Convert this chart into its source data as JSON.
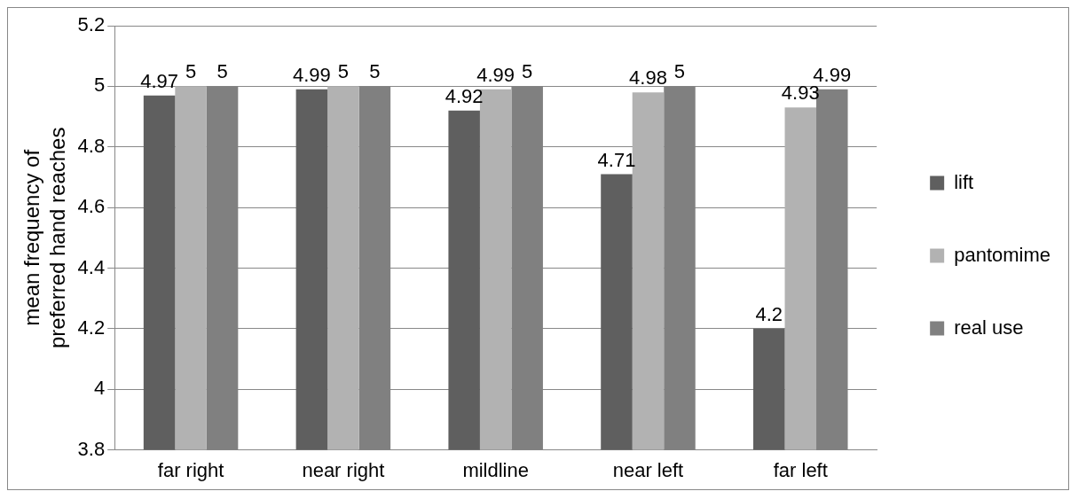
{
  "chart_data": {
    "type": "bar",
    "ylabel": "mean frequency of preferred hand reaches",
    "categories": [
      "far right",
      "near right",
      "mildline",
      "near left",
      "far left"
    ],
    "series": [
      {
        "name": "lift",
        "color": "#5f5f5f",
        "values": [
          4.97,
          4.99,
          4.92,
          4.71,
          4.2
        ]
      },
      {
        "name": "pantomime",
        "color": "#b2b2b2",
        "values": [
          5,
          5,
          4.99,
          4.98,
          4.93
        ]
      },
      {
        "name": "real use",
        "color": "#808080",
        "values": [
          5,
          5,
          5,
          5,
          4.99
        ]
      }
    ],
    "ylim": [
      3.8,
      5.2
    ],
    "yticks": [
      3.8,
      4,
      4.2,
      4.4,
      4.6,
      4.8,
      5,
      5.2
    ],
    "grid": "y",
    "legend": "right",
    "data_labels": true
  }
}
